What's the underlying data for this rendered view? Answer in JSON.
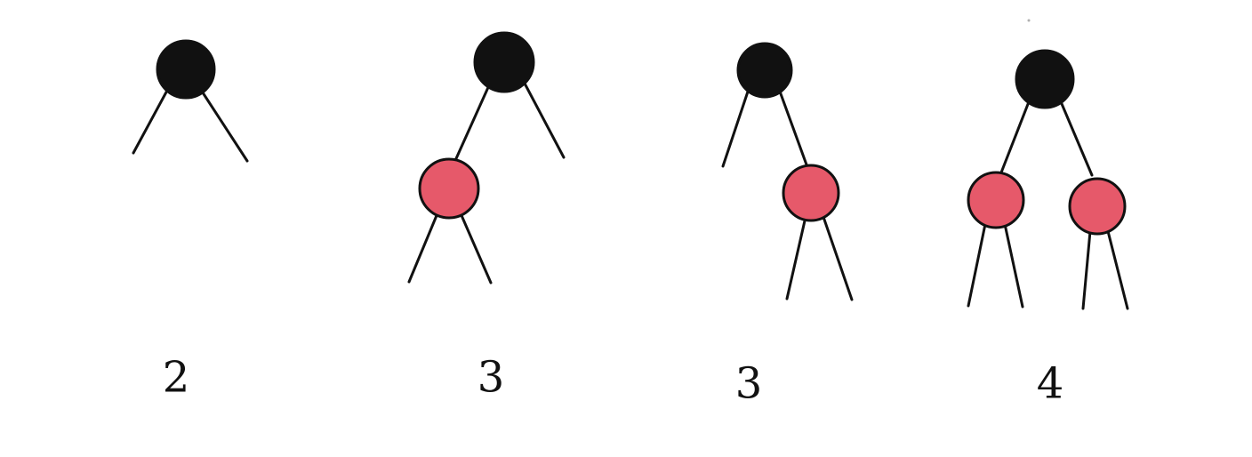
{
  "colors": {
    "black_node": "#111111",
    "red_node": "#e6596a",
    "edge": "#111111",
    "label": "#111111"
  },
  "trees": [
    {
      "name": "tree-2-node",
      "label": "2",
      "nodes": [
        {
          "id": "root",
          "color": "black"
        }
      ],
      "links": [
        {
          "from": "root",
          "to": "null-left"
        },
        {
          "from": "root",
          "to": "null-right"
        }
      ]
    },
    {
      "name": "tree-3-node-left-red",
      "label": "3",
      "nodes": [
        {
          "id": "root",
          "color": "black"
        },
        {
          "id": "left",
          "color": "red"
        }
      ],
      "links": [
        {
          "from": "root",
          "to": "left"
        },
        {
          "from": "root",
          "to": "null-right"
        },
        {
          "from": "left",
          "to": "null-left-left"
        },
        {
          "from": "left",
          "to": "null-left-right"
        }
      ]
    },
    {
      "name": "tree-3-node-right-red",
      "label": "3",
      "nodes": [
        {
          "id": "root",
          "color": "black"
        },
        {
          "id": "right",
          "color": "red"
        }
      ],
      "links": [
        {
          "from": "root",
          "to": "null-left"
        },
        {
          "from": "root",
          "to": "right"
        },
        {
          "from": "right",
          "to": "null-right-left"
        },
        {
          "from": "right",
          "to": "null-right-right"
        }
      ]
    },
    {
      "name": "tree-4-node",
      "label": "4",
      "nodes": [
        {
          "id": "root",
          "color": "black"
        },
        {
          "id": "left",
          "color": "red"
        },
        {
          "id": "right",
          "color": "red"
        }
      ],
      "links": [
        {
          "from": "root",
          "to": "left"
        },
        {
          "from": "root",
          "to": "right"
        },
        {
          "from": "left",
          "to": "null-left-left"
        },
        {
          "from": "left",
          "to": "null-left-right"
        },
        {
          "from": "right",
          "to": "null-right-left"
        },
        {
          "from": "right",
          "to": "null-right-right"
        }
      ]
    }
  ]
}
